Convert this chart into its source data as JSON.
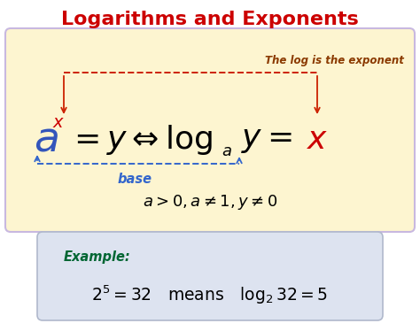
{
  "title": "Logarithms and Exponents",
  "title_color": "#cc0000",
  "bg_color": "#ffffff",
  "main_box_color": "#fdf5d0",
  "main_box_edge": "#c8b8e0",
  "example_box_color": "#dde3f0",
  "example_box_edge": "#b0b8cc",
  "annotation_top": "The log is the exponent",
  "annotation_top_color": "#8B3A00",
  "base_label": "base",
  "base_label_color": "#3366cc",
  "arrow_top_color": "#cc2200",
  "arrow_bottom_color": "#3366cc",
  "example_label": "Example:",
  "example_label_color": "#006633"
}
